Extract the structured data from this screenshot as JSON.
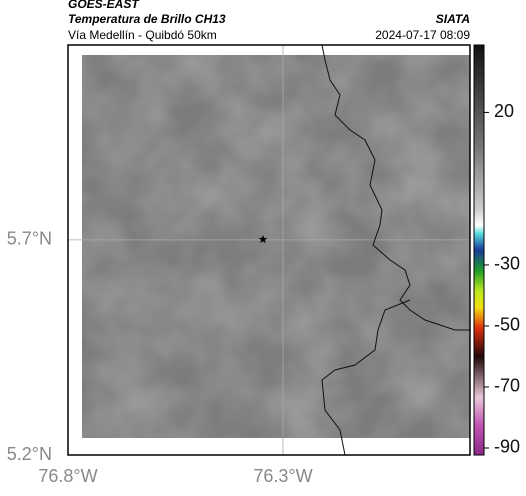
{
  "header": {
    "title": "GOES-EAST",
    "subtitle": "Temperatura de Brillo CH13",
    "route": "Vía Medellín - Quibdó 50km",
    "source": "SIATA",
    "datetime": "2024-07-17 08:09"
  },
  "map": {
    "xlim": [
      -76.8,
      -75.865
    ],
    "ylim": [
      5.2,
      6.153
    ],
    "xticks": [
      {
        "value": -76.8,
        "label": "76.8°W"
      },
      {
        "value": -76.3,
        "label": "76.3°W"
      }
    ],
    "yticks": [
      {
        "value": 5.7,
        "label": "5.7°N"
      },
      {
        "value": 5.2,
        "label": "5.2°N"
      }
    ],
    "grid": true
  },
  "colorbar": {
    "lim": [
      -92.3,
      42.1
    ],
    "ticks": [
      20,
      -30,
      -50,
      -70,
      -90
    ]
  }
}
